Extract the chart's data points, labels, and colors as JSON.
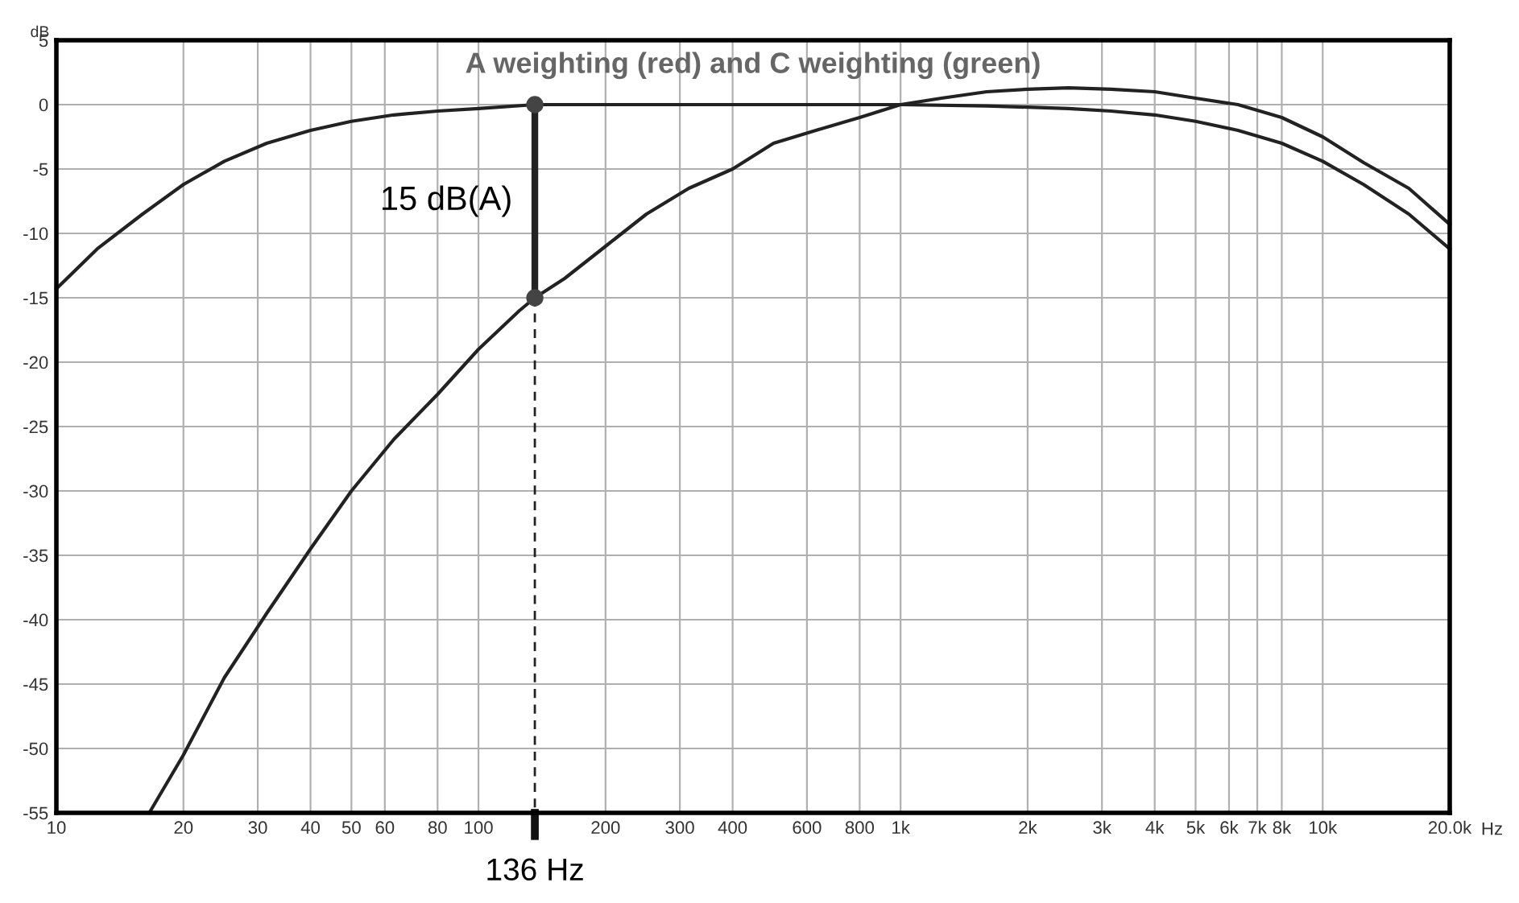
{
  "chart_data": {
    "type": "line",
    "title": "A weighting (red) and C weighting (green)",
    "ylabel": "dB",
    "log": "x",
    "xlim": [
      10,
      20000
    ],
    "xticks": [
      10,
      20,
      30,
      40,
      50,
      60,
      80,
      100,
      200,
      300,
      400,
      600,
      800,
      {
        "value": 1000,
        "label": "1k"
      },
      {
        "value": 2000,
        "label": "2k"
      },
      {
        "value": 3000,
        "label": "3k"
      },
      {
        "value": 4000,
        "label": "4k"
      },
      {
        "value": 5000,
        "label": "5k"
      },
      {
        "value": 6000,
        "label": "6k"
      },
      {
        "value": 7000,
        "label": "7k"
      },
      {
        "value": 8000,
        "label": "8k"
      },
      {
        "value": 10000,
        "label": "10k"
      },
      {
        "value": 20000,
        "label": "20.0k"
      }
    ],
    "xlabel": "Hz",
    "ylim": [
      -55,
      5
    ],
    "yticks": [
      5,
      0,
      -5,
      -10,
      -15,
      -20,
      -25,
      -30,
      -35,
      -40,
      -45,
      -50,
      -55
    ],
    "grid": true,
    "marker": "none",
    "line_style": "solid",
    "series": [
      {
        "color": "#222222",
        "x": [
          16.6,
          20,
          25,
          31.5,
          40,
          50,
          63,
          80,
          100,
          125,
          136,
          160,
          200,
          250,
          315,
          400,
          500,
          630,
          800,
          1000,
          1250,
          1600,
          2000,
          2500,
          3150,
          4000,
          5000,
          6300,
          8000,
          10000,
          12500,
          16000,
          20000
        ],
        "values": [
          -55,
          -50.5,
          -44.5,
          -39.5,
          -34.5,
          -30,
          -26,
          -22.5,
          -19,
          -16,
          -15,
          -13.5,
          -11,
          -8.5,
          -6.5,
          -5,
          -3,
          -2,
          -1,
          0,
          0.5,
          1,
          1.2,
          1.3,
          1.2,
          1,
          0.5,
          0,
          -1,
          -2.5,
          -4.5,
          -6.5,
          -9.3
        ]
      },
      {
        "color": "#222222",
        "x": [
          10,
          12.5,
          16,
          20,
          25,
          31.5,
          40,
          50,
          63,
          80,
          100,
          136,
          200,
          500,
          1000,
          1600,
          2000,
          2500,
          3150,
          4000,
          5000,
          6300,
          8000,
          10000,
          12500,
          16000,
          20000
        ],
        "values": [
          -14.3,
          -11.2,
          -8.5,
          -6.2,
          -4.4,
          -3,
          -2,
          -1.3,
          -0.8,
          -0.5,
          -0.3,
          0,
          0,
          0,
          0,
          -0.1,
          -0.2,
          -0.3,
          -0.5,
          -0.8,
          -1.3,
          -2,
          -3,
          -4.4,
          -6.2,
          -8.5,
          -11.2
        ]
      },
      {
        "color": "#222222",
        "x": [
          136,
          136
        ],
        "values": [
          0,
          -15
        ],
        "line_style": "solid"
      },
      {
        "type": "scatter",
        "color": "#444444",
        "x": [
          136,
          136
        ],
        "values": [
          0,
          -15
        ],
        "marker": "circle"
      },
      {
        "color": "#222222",
        "x": [
          136,
          136
        ],
        "values": [
          -15,
          -55
        ],
        "line_style": "dashed"
      }
    ],
    "annotations": [
      {
        "text": "15 dB(A)",
        "x": 136,
        "y": -7.5
      },
      {
        "text": "136 Hz",
        "x": 136,
        "y": -55
      }
    ]
  }
}
